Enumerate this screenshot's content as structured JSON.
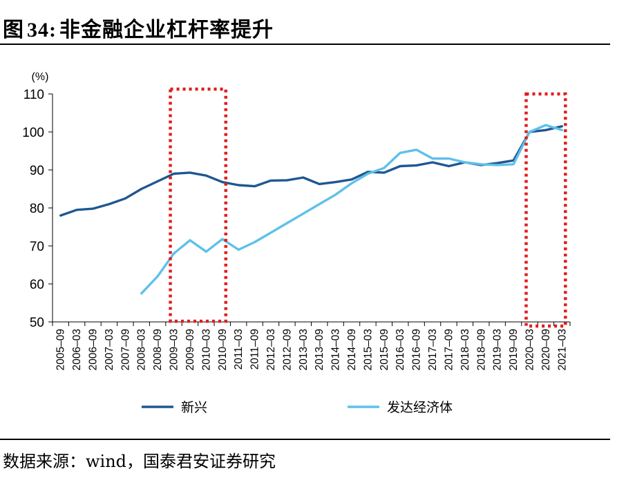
{
  "title_prefix": "图",
  "title_number": "34:",
  "title_text": "非金融企业杠杆率提升",
  "source": "数据来源：wind，国泰君安证券研究",
  "colors": {
    "emerging": "#1f5791",
    "developed": "#5fc0ea",
    "highlight": "#e11b1b"
  },
  "chart_data": {
    "type": "line",
    "y_unit": "(%)",
    "ylim": [
      50,
      110
    ],
    "yticks": [
      50,
      60,
      70,
      80,
      90,
      100,
      110
    ],
    "categories": [
      "2005–09",
      "2006–03",
      "2006–09",
      "2007–03",
      "2007–09",
      "2008–03",
      "2008–09",
      "2009–03",
      "2009–09",
      "2010–03",
      "2010–09",
      "2011–03",
      "2011–09",
      "2012–03",
      "2012–09",
      "2013–03",
      "2013–09",
      "2014–03",
      "2014–09",
      "2015–03",
      "2015–09",
      "2016–03",
      "2016–09",
      "2017–03",
      "2017–09",
      "2018–03",
      "2018–09",
      "2019–03",
      "2019–09",
      "2020–03",
      "2020–09",
      "2021–03"
    ],
    "legend_position": "bottom",
    "series": [
      {
        "name": "新兴",
        "color": "#1f5791",
        "values": [
          78,
          79.5,
          79.8,
          81,
          82.5,
          85,
          87,
          89,
          89.3,
          88.5,
          86.8,
          86,
          85.7,
          87.2,
          87.3,
          88,
          86.3,
          86.8,
          87.5,
          89.5,
          89.3,
          91,
          91.2,
          92,
          91,
          92,
          91.3,
          91.8,
          92.5,
          100,
          100.5,
          101.5
        ]
      },
      {
        "name": "发达经济体",
        "color": "#5fc0ea",
        "values": [
          null,
          null,
          null,
          null,
          null,
          57.5,
          62,
          68,
          71.5,
          68.5,
          71.8,
          69,
          71,
          73.5,
          76,
          78.5,
          81,
          83.5,
          86.5,
          89,
          90.5,
          94.5,
          95.3,
          93,
          93,
          92,
          91.5,
          91.3,
          91.5,
          100,
          101.8,
          100.5
        ]
      }
    ],
    "highlights": [
      {
        "from": "2009–03",
        "to": "2010–09"
      },
      {
        "from": "2020–03",
        "to": "2021–03"
      }
    ]
  }
}
